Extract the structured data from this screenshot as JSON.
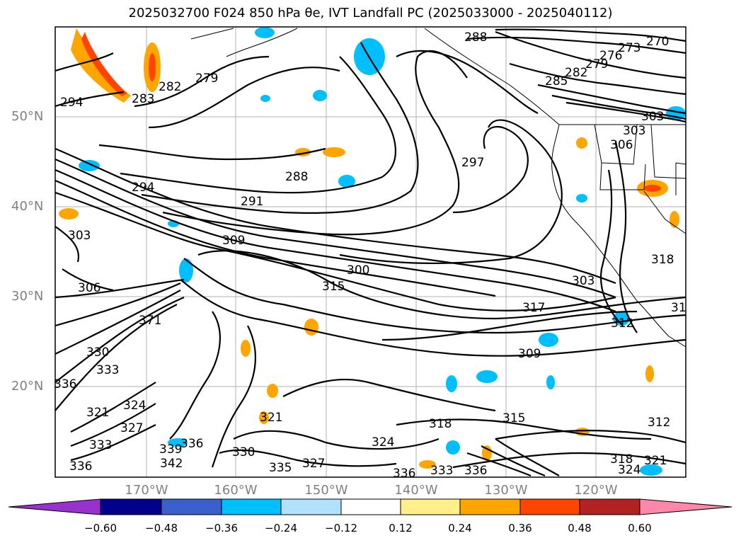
{
  "title": "2025032700 F024 850 hPa θe, IVT Landfall PC (2025033000 - 2025040112)",
  "lat_labels": [
    "50°N",
    "40°N",
    "30°N",
    "20°N"
  ],
  "lon_labels": [
    "170°W",
    "160°W",
    "150°W",
    "140°W",
    "130°W",
    "120°W"
  ],
  "contour_labels": [
    "288",
    "270",
    "273",
    "276",
    "279",
    "282",
    "285",
    "303",
    "294",
    "283",
    "282",
    "279",
    "297",
    "306",
    "288",
    "294",
    "291",
    "303",
    "309",
    "300",
    "315",
    "303",
    "306",
    "318",
    "317",
    "312",
    "371",
    "330",
    "333",
    "336",
    "324",
    "321",
    "327",
    "333",
    "339",
    "336",
    "342",
    "336",
    "330",
    "335",
    "327",
    "321",
    "336",
    "333",
    "336",
    "318",
    "324",
    "315",
    "312",
    "309",
    "318",
    "324",
    "321",
    "31",
    "303"
  ],
  "colorbar": {
    "ticks": [
      "−0.60",
      "−0.48",
      "−0.36",
      "−0.24",
      "−0.12",
      "0.12",
      "0.24",
      "0.36",
      "0.48",
      "0.60"
    ],
    "colors": [
      "#9932cc",
      "#00008b",
      "#3a5fcd",
      "#00bfff",
      "#b0e2ff",
      "#ffffff",
      "#fff08c",
      "#ffa500",
      "#ff4500",
      "#b22222",
      "#ff88aa"
    ]
  }
}
